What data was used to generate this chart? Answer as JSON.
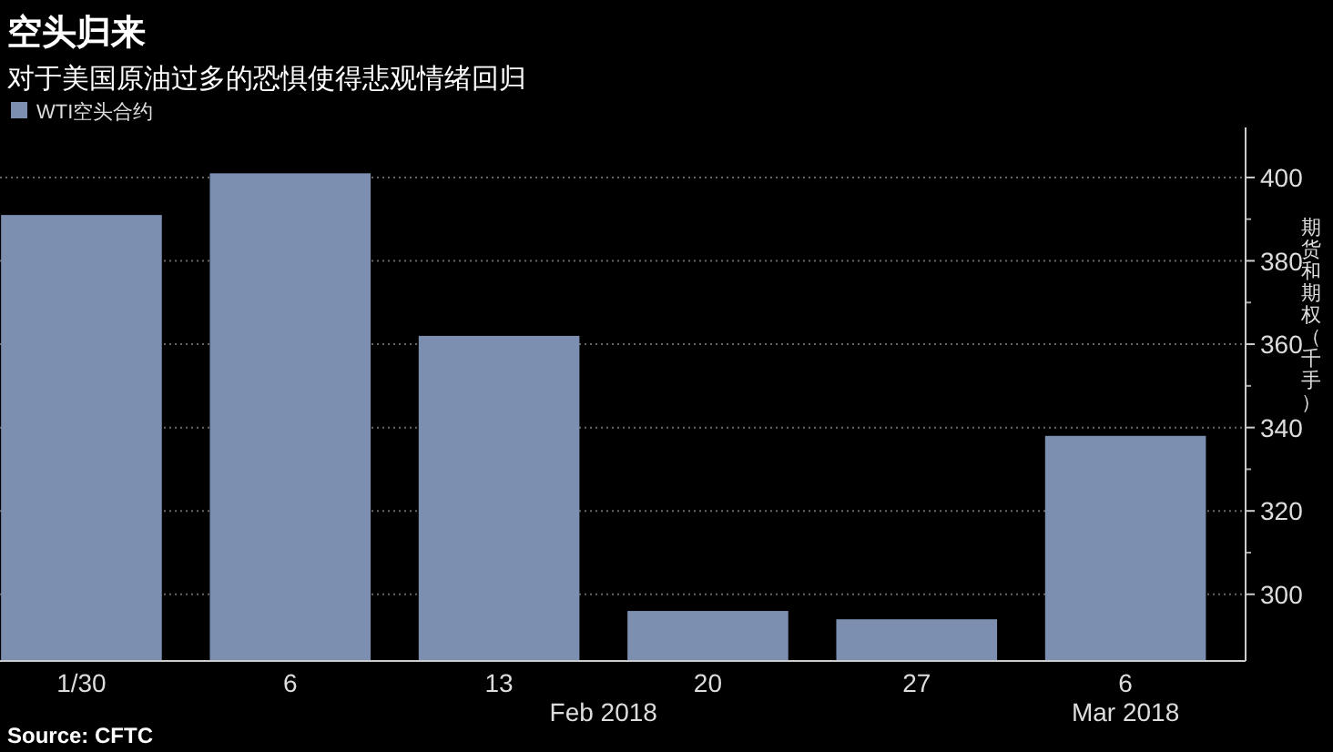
{
  "chart_data": {
    "type": "bar",
    "title": "空头归来",
    "subtitle": "对于美国原油过多的恐惧使得悲观情绪回归",
    "ylabel": "期货和期权（千手）",
    "categories": [
      "1/30",
      "6",
      "13",
      "20",
      "27",
      "6"
    ],
    "series": [
      {
        "name": "WTI空头合约",
        "color": "#7c8fb0",
        "values": [
          391,
          401,
          362,
          296,
          294,
          338
        ]
      }
    ],
    "ylim": [
      284,
      412
    ],
    "yticks": [
      300,
      320,
      340,
      360,
      380,
      400
    ],
    "grid": "y",
    "legend": "top left",
    "annotations": [
      "Feb 2018",
      "Mar 2018",
      "Source: CFTC"
    ]
  }
}
